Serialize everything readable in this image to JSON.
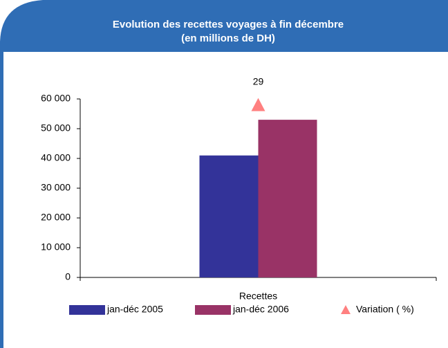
{
  "chart_data": {
    "type": "bar",
    "title": "Evolution des recettes voyages à fin décembre",
    "subtitle": "(en millions de DH)",
    "categories": [
      "Recettes"
    ],
    "series": [
      {
        "name": "jan-déc 2005",
        "color": "#333399",
        "values": [
          41000
        ]
      },
      {
        "name": "jan-déc 2006",
        "color": "#993366",
        "values": [
          53000
        ]
      },
      {
        "name": "Variation ( %)",
        "color": "#ff8080",
        "type": "marker",
        "axis": "y2",
        "values": [
          29
        ]
      }
    ],
    "ylim": [
      0,
      60000
    ],
    "yticks": [
      {
        "value": 0,
        "label": "0"
      },
      {
        "value": 10000,
        "label": "10 000"
      },
      {
        "value": 20000,
        "label": "20 000"
      },
      {
        "value": 30000,
        "label": "30 000"
      },
      {
        "value": 40000,
        "label": "40 000"
      },
      {
        "value": 50000,
        "label": "50 000"
      },
      {
        "value": 60000,
        "label": "60 000"
      }
    ],
    "y2lim": [
      0,
      30
    ],
    "legend": "bottom"
  }
}
